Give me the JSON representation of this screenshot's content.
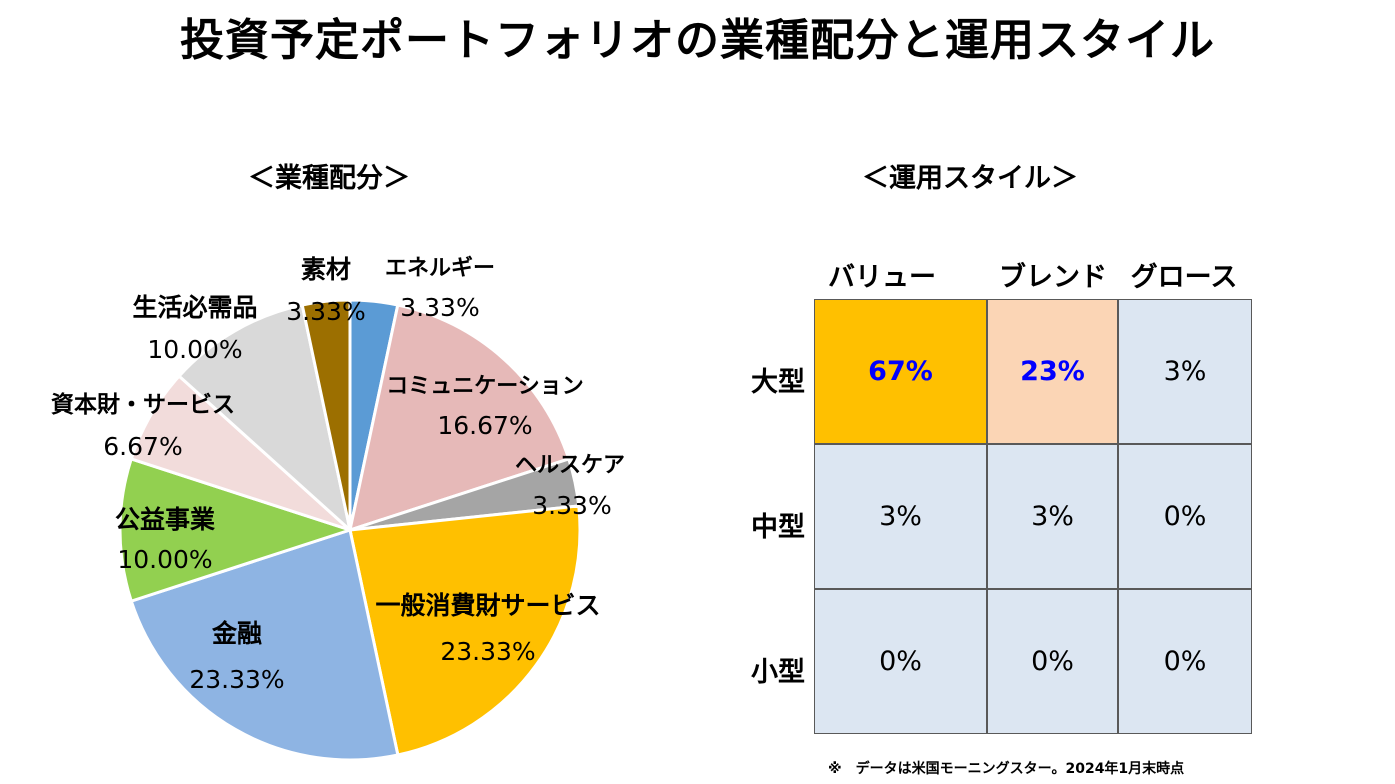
{
  "title": "投資予定ポートフォリオの業種配分と運用スタイル",
  "pie_subtitle": "＜業種配分＞",
  "style_subtitle": "＜運用スタイル＞",
  "chart_data": [
    {
      "type": "pie",
      "title": "＜業種配分＞",
      "slices": [
        {
          "name": "エネルギー",
          "value": 3.33,
          "label": "3.33%",
          "color": "#5b9bd5"
        },
        {
          "name": "コミュニケーション",
          "value": 16.67,
          "label": "16.67%",
          "color": "#e6b9b8"
        },
        {
          "name": "ヘルスケア",
          "value": 3.33,
          "label": "3.33%",
          "color": "#a5a5a5"
        },
        {
          "name": "一般消費財サービス",
          "value": 23.33,
          "label": "23.33%",
          "color": "#ffc000"
        },
        {
          "name": "金融",
          "value": 23.33,
          "label": "23.33%",
          "color": "#8eb4e3"
        },
        {
          "name": "公益事業",
          "value": 10.0,
          "label": "10.00%",
          "color": "#92d050"
        },
        {
          "name": "資本財・サービス",
          "value": 6.67,
          "label": "6.67%",
          "color": "#f2dcdb"
        },
        {
          "name": "生活必需品",
          "value": 10.0,
          "label": "10.00%",
          "color": "#d9d9d9"
        },
        {
          "name": "素材",
          "value": 3.33,
          "label": "3.33%",
          "color": "#9c6f00"
        }
      ]
    },
    {
      "type": "table",
      "title": "＜運用スタイル＞",
      "columns": [
        "バリュー",
        "ブレンド",
        "グロース"
      ],
      "rows": [
        "大型",
        "中型",
        "小型"
      ],
      "values": [
        [
          "67%",
          "23%",
          "3%"
        ],
        [
          "3%",
          "3%",
          "0%"
        ],
        [
          "0%",
          "0%",
          "0%"
        ]
      ],
      "cell_colors": [
        [
          "#ffc000",
          "#fbd5b5",
          "#dce6f2"
        ],
        [
          "#dce6f2",
          "#dce6f2",
          "#dce6f2"
        ],
        [
          "#dce6f2",
          "#dce6f2",
          "#dce6f2"
        ]
      ],
      "highlight_text_color": "#0000ff"
    }
  ],
  "note": "※　データは米国モーニングスター。2024年1月末時点"
}
